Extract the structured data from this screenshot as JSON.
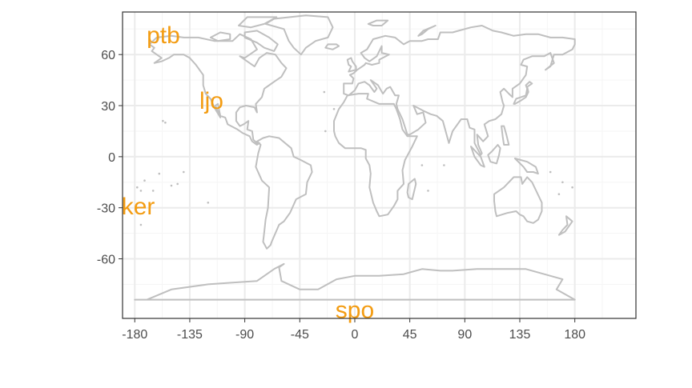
{
  "chart_data": {
    "type": "scatter",
    "subtype": "world-map-with-text-labels",
    "title": "",
    "xlabel": "",
    "ylabel": "",
    "xlim": [
      -190,
      230
    ],
    "ylim": [
      -95,
      85
    ],
    "x_ticks": [
      -180,
      -135,
      -90,
      -45,
      0,
      45,
      90,
      135,
      180
    ],
    "x_tick_labels": [
      "-180",
      "-135",
      "-90",
      "-45",
      "0",
      "45",
      "90",
      "135",
      "180"
    ],
    "y_ticks": [
      60,
      30,
      0,
      -30,
      -60
    ],
    "y_tick_labels": [
      "60",
      "30",
      "0",
      "-30",
      "-60"
    ],
    "grid": true,
    "panel_border": true,
    "points": [
      {
        "label": "ptb",
        "x": -156.6,
        "y": 71.3
      },
      {
        "label": "ljo",
        "x": -117.3,
        "y": 32.9
      },
      {
        "label": "ker",
        "x": -177.2,
        "y": -29.2
      },
      {
        "label": "spo",
        "x": 0,
        "y": -90
      }
    ],
    "colors": {
      "label_color": "#f39c12",
      "map_color": "#bfbfbf",
      "grid_major": "#ebebeb",
      "grid_minor": "#f5f5f5",
      "panel_border": "#333333",
      "tick_text": "#4d4d4d"
    }
  }
}
